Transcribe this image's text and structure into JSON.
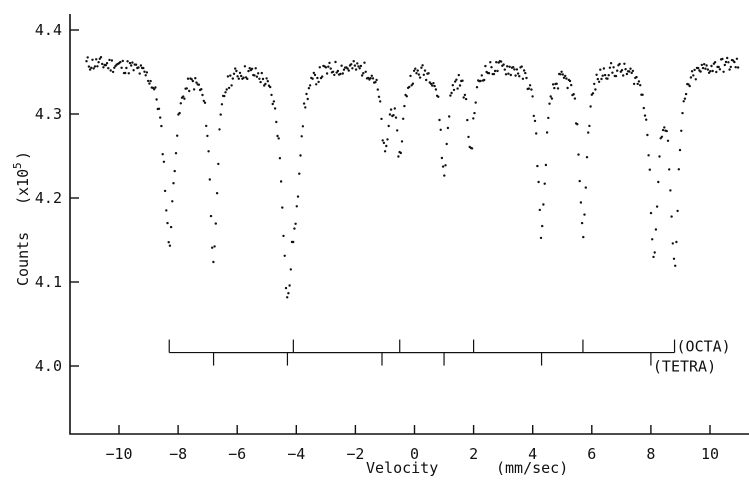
{
  "chart_data": {
    "type": "scatter",
    "xlabel": "Velocity",
    "xlabel_unit": "(mm/sec)",
    "ylabel": "Counts",
    "ylabel_scale": "(x10",
    "ylabel_scale_exp": "5",
    "ylabel_scale_close": ")",
    "xlim": [
      -11.5,
      11.0
    ],
    "ylim": [
      3.95,
      4.42
    ],
    "x_ticks": [
      -10,
      -8,
      -6,
      -4,
      -2,
      0,
      2,
      4,
      6,
      8,
      10
    ],
    "x_tick_labels": [
      "−10",
      "−8",
      "−6",
      "−4",
      "−2",
      "0",
      "2",
      "4",
      "6",
      "8",
      "10"
    ],
    "y_ticks": [
      4.0,
      4.1,
      4.2,
      4.3,
      4.4
    ],
    "y_tick_labels": [
      "4.0",
      "4.1",
      "4.2",
      "4.3",
      "4.4"
    ],
    "grid": false,
    "baseline": 4.37,
    "lines": [
      {
        "x": -8.3,
        "depth": 0.21,
        "width": 0.42
      },
      {
        "x": -6.8,
        "depth": 0.23,
        "width": 0.3
      },
      {
        "x": -4.3,
        "depth": 0.26,
        "width": 0.42
      },
      {
        "x": -4.0,
        "depth": 0.1,
        "width": 0.3
      },
      {
        "x": -1.0,
        "depth": 0.1,
        "width": 0.3
      },
      {
        "x": -0.5,
        "depth": 0.1,
        "width": 0.3
      },
      {
        "x": 1.0,
        "depth": 0.13,
        "width": 0.28
      },
      {
        "x": 1.9,
        "depth": 0.1,
        "width": 0.28
      },
      {
        "x": 4.3,
        "depth": 0.2,
        "width": 0.32
      },
      {
        "x": 5.7,
        "depth": 0.2,
        "width": 0.3
      },
      {
        "x": 8.1,
        "depth": 0.22,
        "width": 0.32
      },
      {
        "x": 8.8,
        "depth": 0.23,
        "width": 0.32
      }
    ],
    "stick_diagrams": [
      {
        "name": "(OCTA)",
        "y": 4.016,
        "tick_direction": "up",
        "positions": [
          -8.3,
          -4.1,
          -0.5,
          2.0,
          5.7,
          8.8
        ]
      },
      {
        "name": "(TETRA)",
        "y": 4.016,
        "tick_direction": "down",
        "positions": [
          -6.8,
          -4.3,
          -1.1,
          1.0,
          4.3,
          8.0
        ]
      }
    ]
  }
}
